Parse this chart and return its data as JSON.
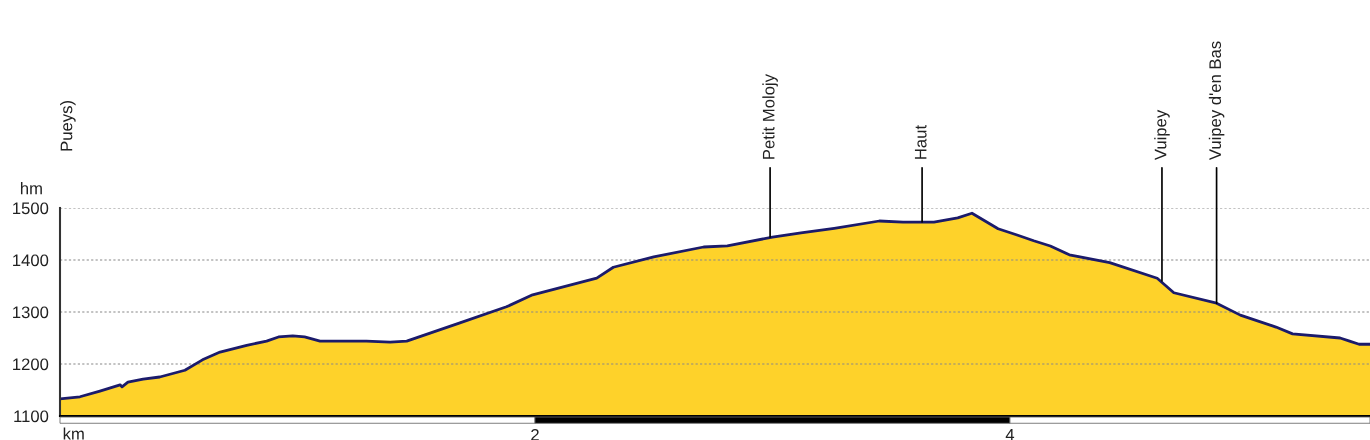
{
  "chart_data": {
    "type": "area",
    "xlabel": "km",
    "ylabel": "hm",
    "x": [
      0,
      0.084,
      0.168,
      0.253,
      0.261,
      0.286,
      0.35,
      0.42,
      0.526,
      0.6,
      0.674,
      0.786,
      0.87,
      0.92,
      0.98,
      1.03,
      1.095,
      1.29,
      1.39,
      1.46,
      1.684,
      1.88,
      1.99,
      2.26,
      2.33,
      2.5,
      2.71,
      2.81,
      3.0,
      3.12,
      3.26,
      3.45,
      3.55,
      3.68,
      3.78,
      3.84,
      3.95,
      4.03,
      4.1,
      4.17,
      4.25,
      4.42,
      4.62,
      4.69,
      4.87,
      4.97,
      5.12,
      5.19,
      5.39,
      5.43,
      5.47,
      5.516
    ],
    "series": [
      {
        "color": "#fed22a",
        "values": [
          1133,
          1137,
          1148,
          1160,
          1156,
          1165,
          1171,
          1175,
          1188,
          1208,
          1223,
          1236,
          1244,
          1252,
          1254,
          1252,
          1244,
          1244,
          1242,
          1244,
          1279,
          1310,
          1333,
          1365,
          1386,
          1406,
          1425,
          1427,
          1444,
          1452,
          1461,
          1475,
          1473,
          1473,
          1481,
          1490,
          1460,
          1448,
          1437,
          1427,
          1410,
          1395,
          1365,
          1337,
          1317,
          1294,
          1271,
          1258,
          1250,
          1244,
          1238,
          1238
        ]
      },
      {
        "type": "line",
        "color": "#1b1b6b",
        "values": [
          1133,
          1137,
          1148,
          1160,
          1156,
          1165,
          1171,
          1175,
          1188,
          1208,
          1223,
          1236,
          1244,
          1252,
          1254,
          1252,
          1244,
          1244,
          1242,
          1244,
          1279,
          1310,
          1333,
          1365,
          1386,
          1406,
          1425,
          1427,
          1444,
          1452,
          1461,
          1475,
          1473,
          1473,
          1481,
          1490,
          1460,
          1448,
          1437,
          1427,
          1410,
          1395,
          1365,
          1337,
          1317,
          1294,
          1271,
          1258,
          1250,
          1244,
          1238,
          1238
        ]
      }
    ],
    "xlim": [
      0,
      5.516
    ],
    "ylim": [
      1100,
      1500
    ],
    "xticks": [
      2,
      4
    ],
    "yticks": [
      1100,
      1200,
      1300,
      1400,
      1500
    ],
    "grid": "y",
    "annotations": [
      "Pueys)",
      {
        "text": "Petit Molojy",
        "x": 2.99,
        "y": 1444
      },
      {
        "text": "Haut",
        "x": 3.63,
        "y": 1473
      },
      {
        "text": "Vuipey",
        "x": 4.64,
        "y": 1360
      },
      {
        "text": "Vuipey d'en Bas",
        "x": 4.87,
        "y": 1317
      }
    ]
  }
}
